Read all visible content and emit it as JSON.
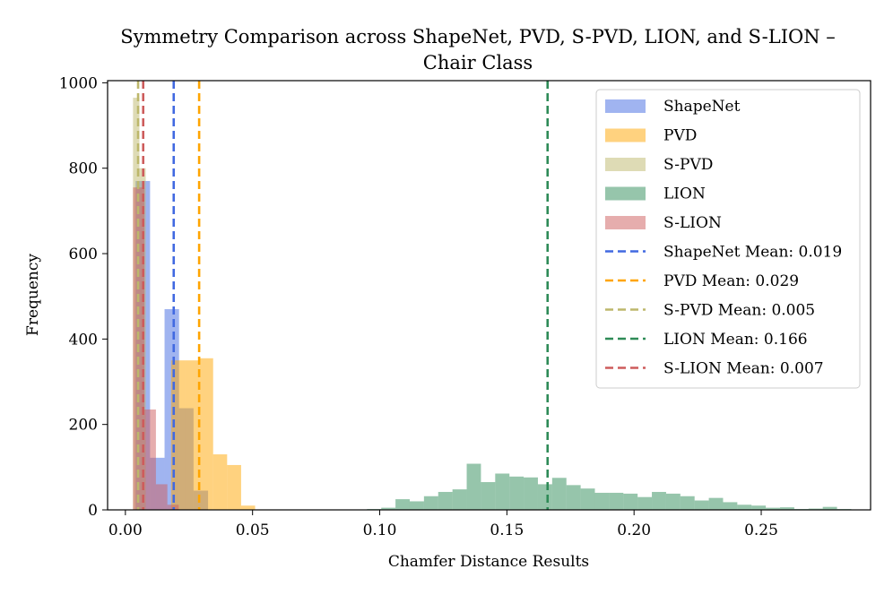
{
  "chart_data": {
    "type": "histogram",
    "title_lines": [
      "Symmetry Comparison across ShapeNet, PVD, S-PVD, LION, and S-LION –",
      "Chair Class"
    ],
    "xlabel": "Chamfer Distance Results",
    "ylabel": "Frequency",
    "xlim": [
      -0.007,
      0.293
    ],
    "ylim": [
      0,
      1005
    ],
    "xticks": [
      0.0,
      0.05,
      0.1,
      0.15,
      0.2,
      0.25
    ],
    "xtick_labels": [
      "0.00",
      "0.05",
      "0.10",
      "0.15",
      "0.20",
      "0.25"
    ],
    "yticks": [
      0,
      200,
      400,
      600,
      800,
      1000
    ],
    "ytick_labels": [
      "0",
      "200",
      "400",
      "600",
      "800",
      "1000"
    ],
    "legend_position": "upper right",
    "series": [
      {
        "name": "ShapeNet",
        "color": "#4169e1",
        "alpha": 0.5,
        "bins": [
          [
            0.004,
            0.0097,
            770
          ],
          [
            0.0097,
            0.0154,
            122
          ],
          [
            0.0154,
            0.0211,
            470
          ],
          [
            0.0211,
            0.0268,
            238
          ],
          [
            0.0268,
            0.0325,
            45
          ]
        ]
      },
      {
        "name": "PVD",
        "color": "#ffa500",
        "alpha": 0.5,
        "bins": [
          [
            0.018,
            0.0235,
            350
          ],
          [
            0.0235,
            0.029,
            350
          ],
          [
            0.029,
            0.0345,
            355
          ],
          [
            0.0345,
            0.04,
            130
          ],
          [
            0.04,
            0.0455,
            105
          ],
          [
            0.0455,
            0.051,
            10
          ]
        ]
      },
      {
        "name": "S-PVD",
        "color": "#bdb76b",
        "alpha": 0.5,
        "bins": [
          [
            0.003,
            0.0055,
            965
          ],
          [
            0.0055,
            0.008,
            800
          ]
        ]
      },
      {
        "name": "LION",
        "color": "#2e8b57",
        "alpha": 0.5,
        "bins": [
          [
            0.095,
            0.1006,
            2
          ],
          [
            0.1006,
            0.1062,
            5
          ],
          [
            0.1062,
            0.1118,
            25
          ],
          [
            0.1118,
            0.1174,
            20
          ],
          [
            0.1174,
            0.123,
            32
          ],
          [
            0.123,
            0.1286,
            42
          ],
          [
            0.1286,
            0.1342,
            48
          ],
          [
            0.1342,
            0.1398,
            108
          ],
          [
            0.1398,
            0.1454,
            65
          ],
          [
            0.1454,
            0.151,
            85
          ],
          [
            0.151,
            0.1566,
            78
          ],
          [
            0.1566,
            0.1622,
            76
          ],
          [
            0.1622,
            0.1678,
            60
          ],
          [
            0.1678,
            0.1734,
            75
          ],
          [
            0.1734,
            0.179,
            58
          ],
          [
            0.179,
            0.1846,
            50
          ],
          [
            0.1846,
            0.1902,
            40
          ],
          [
            0.1902,
            0.1958,
            40
          ],
          [
            0.1958,
            0.2014,
            38
          ],
          [
            0.2014,
            0.207,
            30
          ],
          [
            0.207,
            0.2126,
            42
          ],
          [
            0.2126,
            0.2182,
            38
          ],
          [
            0.2182,
            0.2238,
            32
          ],
          [
            0.2238,
            0.2294,
            22
          ],
          [
            0.2294,
            0.235,
            28
          ],
          [
            0.235,
            0.2406,
            18
          ],
          [
            0.2406,
            0.2462,
            12
          ],
          [
            0.2462,
            0.2518,
            10
          ],
          [
            0.2518,
            0.2574,
            5
          ],
          [
            0.2574,
            0.263,
            6
          ],
          [
            0.263,
            0.2686,
            2
          ],
          [
            0.2686,
            0.2742,
            3
          ],
          [
            0.2742,
            0.2798,
            7
          ],
          [
            0.2798,
            0.2854,
            2
          ]
        ]
      },
      {
        "name": "S-LION",
        "color": "#cd5c5c",
        "alpha": 0.5,
        "bins": [
          [
            0.003,
            0.0075,
            755
          ],
          [
            0.0075,
            0.012,
            235
          ],
          [
            0.012,
            0.0165,
            60
          ],
          [
            0.0165,
            0.021,
            12
          ]
        ]
      }
    ],
    "mean_lines": [
      {
        "label": "ShapeNet Mean: 0.019",
        "value": 0.019,
        "color": "#4169e1"
      },
      {
        "label": "PVD Mean: 0.029",
        "value": 0.029,
        "color": "#ffa500"
      },
      {
        "label": "S-PVD Mean: 0.005",
        "value": 0.005,
        "color": "#bdb76b"
      },
      {
        "label": "LION Mean: 0.166",
        "value": 0.166,
        "color": "#2e8b57"
      },
      {
        "label": "S-LION Mean: 0.007",
        "value": 0.007,
        "color": "#cd5c5c"
      }
    ]
  }
}
